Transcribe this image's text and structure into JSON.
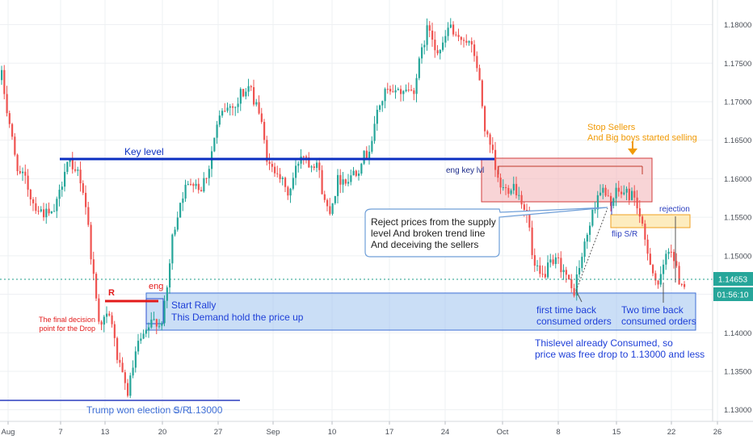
{
  "colors": {
    "bull": "#26a69a",
    "bear": "#ef5350",
    "key_level": "#0b2fc1",
    "demand_fill": "#9fc2ef",
    "supply_fill": "#f3b8bb",
    "flip_fill": "#fde9b4",
    "annotation_blue": "#1e3fd8",
    "annotation_red": "#e31a1a",
    "annotation_orange": "#f19a05",
    "price_tag": "#26a69a",
    "grid": "#eef0f3"
  },
  "chart_data": {
    "type": "candlestick",
    "instrument_scale": "price",
    "y_ticks": [
      "1.13000",
      "1.13500",
      "1.14000",
      "1.14500",
      "1.15000",
      "1.15500",
      "1.16000",
      "1.16500",
      "1.17000",
      "1.17500",
      "1.18000"
    ],
    "ylim": [
      1.1285,
      1.1832
    ],
    "x_ticks": [
      "Aug",
      "7",
      "13",
      "20",
      "27",
      "Sep",
      "10",
      "17",
      "24",
      "Oct",
      "8",
      "15",
      "22",
      "26"
    ],
    "grid": true,
    "current_price": "1.14653",
    "countdown": "01:56:10",
    "key_level": {
      "label": "Key level",
      "price": 1.1629
    },
    "trump_level": {
      "label": "Trump won election S/R",
      "emoji": "☺",
      "value": "1.13000"
    },
    "annotations": {
      "r_label": "R",
      "eng_label": "eng",
      "final_decision": [
        "The final decision",
        "point for the Drop"
      ],
      "start_rally": [
        "Start Rally",
        "This Demand hold the price up"
      ],
      "eng_key_lvl": "eng key lvl",
      "stop_sellers": [
        "Stop Sellers ",
        "And Big boys started selling"
      ],
      "rejection": "rejection",
      "flip_sr": "flip S/R",
      "callout": [
        "Reject prices from the supply",
        "level And broken trend line",
        "And deceiving the sellers"
      ],
      "first_time": [
        "first time back",
        "consumed orders"
      ],
      "two_time": [
        "Two time back",
        "consumed orders"
      ],
      "consumed_note": [
        "Thislevel already Consumed, so",
        "price was free drop to 1.13000 and less"
      ]
    },
    "path": [
      [
        0,
        1.1728
      ],
      [
        5,
        1.1735
      ],
      [
        9,
        1.1698
      ],
      [
        14,
        1.1672
      ],
      [
        20,
        1.1631
      ],
      [
        27,
        1.1605
      ],
      [
        34,
        1.1598
      ],
      [
        42,
        1.1571
      ],
      [
        50,
        1.156
      ],
      [
        58,
        1.1555
      ],
      [
        66,
        1.1552
      ],
      [
        72,
        1.1565
      ],
      [
        78,
        1.159
      ],
      [
        83,
        1.162
      ],
      [
        88,
        1.1624
      ],
      [
        93,
        1.16
      ],
      [
        98,
        1.1612
      ],
      [
        104,
        1.159
      ],
      [
        110,
        1.1555
      ],
      [
        114,
        1.1508
      ],
      [
        119,
        1.1465
      ],
      [
        124,
        1.142
      ],
      [
        128,
        1.1415
      ],
      [
        134,
        1.142
      ],
      [
        140,
        1.142
      ],
      [
        145,
        1.138
      ],
      [
        150,
        1.1355
      ],
      [
        155,
        1.1338
      ],
      [
        160,
        1.1322
      ],
      [
        165,
        1.1345
      ],
      [
        170,
        1.1372
      ],
      [
        175,
        1.139
      ],
      [
        180,
        1.1392
      ],
      [
        185,
        1.1405
      ],
      [
        190,
        1.1412
      ],
      [
        195,
        1.1418
      ],
      [
        200,
        1.1408
      ],
      [
        205,
        1.1428
      ],
      [
        210,
        1.1465
      ],
      [
        215,
        1.152
      ],
      [
        220,
        1.1545
      ],
      [
        225,
        1.157
      ],
      [
        230,
        1.1585
      ],
      [
        235,
        1.159
      ],
      [
        240,
        1.16
      ],
      [
        245,
        1.1595
      ],
      [
        250,
        1.1585
      ],
      [
        255,
        1.16
      ],
      [
        260,
        1.161
      ],
      [
        265,
        1.164
      ],
      [
        270,
        1.1665
      ],
      [
        275,
        1.168
      ],
      [
        280,
        1.169
      ],
      [
        285,
        1.1692
      ],
      [
        290,
        1.1698
      ],
      [
        295,
        1.1692
      ],
      [
        300,
        1.1712
      ],
      [
        305,
        1.171
      ],
      [
        310,
        1.172
      ],
      [
        315,
        1.1705
      ],
      [
        320,
        1.17
      ],
      [
        325,
        1.1675
      ],
      [
        330,
        1.1642
      ],
      [
        335,
        1.1615
      ],
      [
        340,
        1.161
      ],
      [
        345,
        1.1615
      ],
      [
        350,
        1.16
      ],
      [
        355,
        1.1585
      ],
      [
        360,
        1.158
      ],
      [
        365,
        1.16
      ],
      [
        370,
        1.1618
      ],
      [
        375,
        1.1633
      ],
      [
        380,
        1.1632
      ],
      [
        385,
        1.162
      ],
      [
        390,
        1.1622
      ],
      [
        395,
        1.1622
      ],
      [
        400,
        1.159
      ],
      [
        405,
        1.1565
      ],
      [
        410,
        1.156
      ],
      [
        415,
        1.1575
      ],
      [
        420,
        1.1598
      ],
      [
        425,
        1.16
      ],
      [
        430,
        1.16
      ],
      [
        435,
        1.1598
      ],
      [
        440,
        1.1612
      ],
      [
        445,
        1.161
      ],
      [
        450,
        1.1628
      ],
      [
        455,
        1.163
      ],
      [
        460,
        1.1642
      ],
      [
        465,
        1.166
      ],
      [
        470,
        1.1695
      ],
      [
        475,
        1.17
      ],
      [
        480,
        1.1715
      ],
      [
        485,
        1.171
      ],
      [
        490,
        1.1706
      ],
      [
        495,
        1.172
      ],
      [
        500,
        1.1708
      ],
      [
        505,
        1.172
      ],
      [
        510,
        1.1712
      ],
      [
        515,
        1.1718
      ],
      [
        520,
        1.1745
      ],
      [
        525,
        1.1768
      ],
      [
        530,
        1.1792
      ],
      [
        535,
        1.1795
      ],
      [
        540,
        1.1775
      ],
      [
        545,
        1.1765
      ],
      [
        550,
        1.177
      ],
      [
        555,
        1.179
      ],
      [
        560,
        1.18
      ],
      [
        565,
        1.178
      ],
      [
        570,
        1.1778
      ],
      [
        575,
        1.1785
      ],
      [
        580,
        1.178
      ],
      [
        585,
        1.177
      ],
      [
        590,
        1.176
      ],
      [
        595,
        1.173
      ],
      [
        600,
        1.1685
      ],
      [
        603,
        1.166
      ],
      [
        607,
        1.1645
      ],
      [
        612,
        1.163
      ],
      [
        617,
        1.16
      ],
      [
        622,
        1.159
      ],
      [
        627,
        1.1585
      ],
      [
        632,
        1.1588
      ],
      [
        637,
        1.1595
      ],
      [
        642,
        1.1583
      ],
      [
        647,
        1.1575
      ],
      [
        652,
        1.156
      ],
      [
        657,
        1.154
      ],
      [
        662,
        1.1485
      ],
      [
        667,
        1.148
      ],
      [
        672,
        1.147
      ],
      [
        677,
        1.1478
      ],
      [
        682,
        1.1488
      ],
      [
        687,
        1.1486
      ],
      [
        692,
        1.1495
      ],
      [
        697,
        1.1485
      ],
      [
        702,
        1.1478
      ],
      [
        707,
        1.146
      ],
      [
        712,
        1.145
      ],
      [
        717,
        1.1478
      ],
      [
        722,
        1.1495
      ],
      [
        727,
        1.152
      ],
      [
        732,
        1.154
      ],
      [
        737,
        1.156
      ],
      [
        742,
        1.158
      ],
      [
        747,
        1.1588
      ],
      [
        752,
        1.1575
      ],
      [
        757,
        1.157
      ],
      [
        762,
        1.1575
      ],
      [
        767,
        1.1585
      ],
      [
        772,
        1.158
      ],
      [
        777,
        1.1583
      ],
      [
        782,
        1.1578
      ],
      [
        787,
        1.158
      ],
      [
        792,
        1.156
      ],
      [
        797,
        1.1535
      ],
      [
        802,
        1.151
      ],
      [
        807,
        1.1495
      ],
      [
        812,
        1.1472
      ],
      [
        817,
        1.1462
      ],
      [
        822,
        1.1475
      ],
      [
        827,
        1.1505
      ],
      [
        832,
        1.1515
      ],
      [
        837,
        1.149
      ],
      [
        842,
        1.147
      ],
      [
        846,
        1.1465
      ]
    ]
  }
}
